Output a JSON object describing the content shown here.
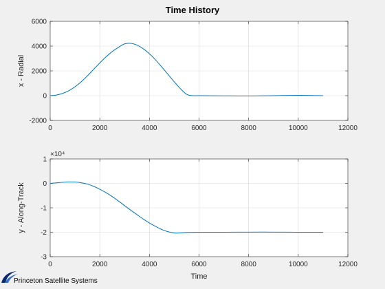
{
  "figure": {
    "title": "Time History",
    "logo_text": "Princeton Satellite Systems"
  },
  "colors": {
    "series": "#0072bd",
    "background": "#f0f0f0",
    "axes": "#ffffff"
  },
  "chart_data": [
    {
      "type": "line",
      "title": "Time History",
      "xlabel": "",
      "ylabel": "x - Radial",
      "xlim": [
        0,
        12000
      ],
      "ylim": [
        -2000,
        6000
      ],
      "xticks": [
        0,
        2000,
        4000,
        6000,
        8000,
        10000,
        12000
      ],
      "xtick_labels": [
        "0",
        "2000",
        "4000",
        "6000",
        "8000",
        "10000",
        "12000"
      ],
      "yticks": [
        -2000,
        0,
        2000,
        4000,
        6000
      ],
      "ytick_labels": [
        "-2000",
        "0",
        "2000",
        "4000",
        "6000"
      ],
      "exponent_label": "",
      "grid": true,
      "series": [
        {
          "x": [
            0,
            250,
            500,
            750,
            1000,
            1250,
            1500,
            1750,
            2000,
            2250,
            2500,
            2750,
            3000,
            3250,
            3500,
            3750,
            4000,
            4250,
            4500,
            4750,
            5000,
            5250,
            5500,
            5750,
            6000,
            7000,
            8000,
            9000,
            10000,
            11000
          ],
          "y": [
            0,
            50,
            180,
            400,
            720,
            1120,
            1600,
            2120,
            2640,
            3130,
            3560,
            3900,
            4180,
            4220,
            4080,
            3790,
            3380,
            2880,
            2310,
            1720,
            1120,
            560,
            110,
            0,
            0,
            -20,
            -30,
            0,
            30,
            0
          ]
        }
      ]
    },
    {
      "type": "line",
      "title": "",
      "xlabel": "Time",
      "ylabel": "y - Along-Track",
      "xlim": [
        0,
        12000
      ],
      "ylim": [
        -30000,
        10000
      ],
      "xticks": [
        0,
        2000,
        4000,
        6000,
        8000,
        10000,
        12000
      ],
      "xtick_labels": [
        "0",
        "2000",
        "4000",
        "6000",
        "8000",
        "10000",
        "12000"
      ],
      "yticks": [
        -30000,
        -20000,
        -10000,
        0,
        10000
      ],
      "ytick_labels": [
        "-3",
        "-2",
        "-1",
        "0",
        "1"
      ],
      "exponent_label": "×10⁴",
      "grid": true,
      "series": [
        {
          "x": [
            0,
            250,
            500,
            750,
            1000,
            1250,
            1500,
            1750,
            2000,
            2250,
            2500,
            2750,
            3000,
            3250,
            3500,
            3750,
            4000,
            4250,
            4500,
            4750,
            5000,
            5250,
            5500,
            6000,
            7000,
            8000,
            9000,
            10000,
            11000
          ],
          "y": [
            0,
            200,
            450,
            600,
            550,
            250,
            -300,
            -1200,
            -2400,
            -3800,
            -5400,
            -7200,
            -9100,
            -11000,
            -12800,
            -14600,
            -16200,
            -17600,
            -18900,
            -19800,
            -20300,
            -20300,
            -20100,
            -20000,
            -20000,
            -19950,
            -19950,
            -20000,
            -20000
          ]
        }
      ]
    }
  ]
}
